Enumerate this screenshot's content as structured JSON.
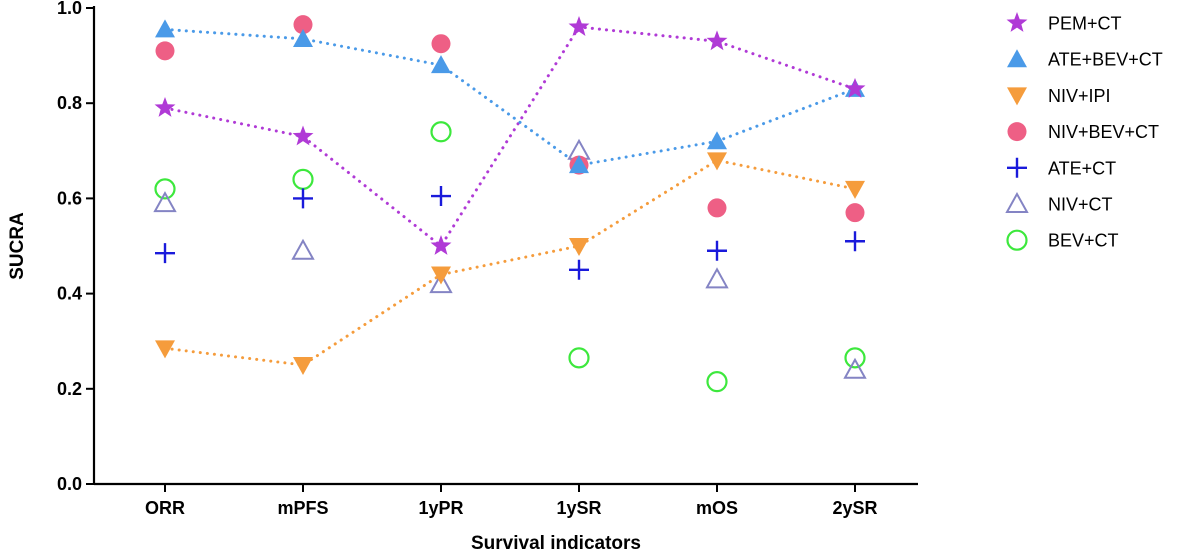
{
  "chart_data": {
    "type": "scatter",
    "title": "",
    "xlabel": "Survival indicators",
    "ylabel": "SUCRA",
    "ylim": [
      0,
      1
    ],
    "yticks": [
      "0.0",
      "0.2",
      "0.4",
      "0.6",
      "0.8",
      "1.0"
    ],
    "categories": [
      "ORR",
      "mPFS",
      "1yPR",
      "1ySR",
      "mOS",
      "2ySR"
    ],
    "legend_position": "right",
    "series": [
      {
        "name": "PEM+CT",
        "marker": "star",
        "color": "#b03ad6",
        "connected": true,
        "values": [
          0.79,
          0.73,
          0.5,
          0.96,
          0.93,
          0.83
        ]
      },
      {
        "name": "ATE+BEV+CT",
        "marker": "triangle-up",
        "color": "#4a9ae8",
        "connected": true,
        "values": [
          0.955,
          0.935,
          0.88,
          0.67,
          0.72,
          0.83
        ]
      },
      {
        "name": "NIV+IPI",
        "marker": "triangle-down",
        "color": "#f59c3c",
        "connected": true,
        "values": [
          0.285,
          0.25,
          0.44,
          0.5,
          0.68,
          0.62
        ]
      },
      {
        "name": "NIV+BEV+CT",
        "marker": "circle-filled",
        "color": "#ee5f85",
        "connected": false,
        "values": [
          0.91,
          0.965,
          0.925,
          0.67,
          0.58,
          0.57
        ]
      },
      {
        "name": "ATE+CT",
        "marker": "plus",
        "color": "#1a1adb",
        "connected": false,
        "values": [
          0.485,
          0.6,
          0.605,
          0.45,
          0.49,
          0.51
        ]
      },
      {
        "name": "NIV+CT",
        "marker": "triangle-open",
        "color": "#8484c4",
        "connected": false,
        "values": [
          0.59,
          0.49,
          0.42,
          0.7,
          0.43,
          0.24
        ]
      },
      {
        "name": "BEV+CT",
        "marker": "circle-open",
        "color": "#3de83d",
        "connected": false,
        "values": [
          0.62,
          0.64,
          0.74,
          0.265,
          0.215,
          0.265
        ]
      }
    ]
  }
}
